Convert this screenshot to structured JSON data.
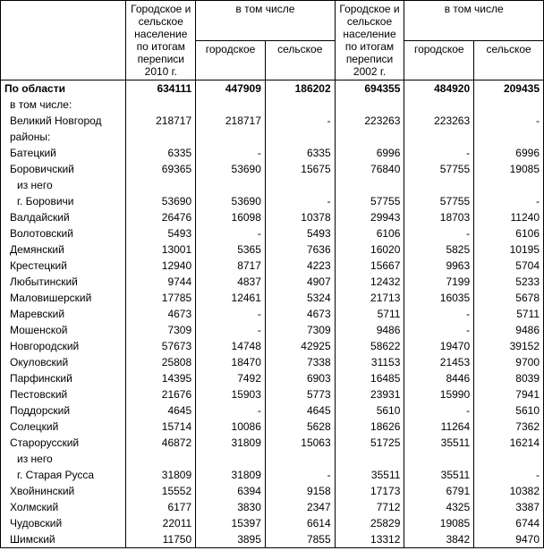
{
  "headers": {
    "col_2010_total": "Городское и сельское население по итогам переписи 2010 г.",
    "group_2010": "в том числе",
    "col_2010_urban": "городское",
    "col_2010_rural": "сельское",
    "col_2002_total": "Городское и сельское население по итогам переписи 2002 г.",
    "group_2002": "в том числе",
    "col_2002_urban": "городское",
    "col_2002_rural": "сельское"
  },
  "rows": [
    {
      "label": "По области",
      "v": [
        "634111",
        "447909",
        "186202",
        "694355",
        "484920",
        "209435"
      ],
      "bold": true,
      "indent": 0
    },
    {
      "label": "в том числе:",
      "v": [
        "",
        "",
        "",
        "",
        "",
        ""
      ],
      "bold": false,
      "indent": 1
    },
    {
      "label": "Великий Новгород",
      "v": [
        "218717",
        "218717",
        "-",
        "223263",
        "223263",
        "-"
      ],
      "bold": false,
      "indent": 1
    },
    {
      "label": "районы:",
      "v": [
        "",
        "",
        "",
        "",
        "",
        ""
      ],
      "bold": false,
      "indent": 1
    },
    {
      "label": "Батецкий",
      "v": [
        "6335",
        "-",
        "6335",
        "6996",
        "-",
        "6996"
      ],
      "bold": false,
      "indent": 1
    },
    {
      "label": "Боровичский",
      "v": [
        "69365",
        "53690",
        "15675",
        "76840",
        "57755",
        "19085"
      ],
      "bold": false,
      "indent": 1
    },
    {
      "label": "из него",
      "v": [
        "",
        "",
        "",
        "",
        "",
        ""
      ],
      "bold": false,
      "indent": 2
    },
    {
      "label": "г. Боровичи",
      "v": [
        "53690",
        "53690",
        "-",
        "57755",
        "57755",
        "-"
      ],
      "bold": false,
      "indent": 2
    },
    {
      "label": "Валдайский",
      "v": [
        "26476",
        "16098",
        "10378",
        "29943",
        "18703",
        "11240"
      ],
      "bold": false,
      "indent": 1
    },
    {
      "label": "Волотовский",
      "v": [
        "5493",
        "-",
        "5493",
        "6106",
        "-",
        "6106"
      ],
      "bold": false,
      "indent": 1
    },
    {
      "label": "Демянский",
      "v": [
        "13001",
        "5365",
        "7636",
        "16020",
        "5825",
        "10195"
      ],
      "bold": false,
      "indent": 1
    },
    {
      "label": "Крестецкий",
      "v": [
        "12940",
        "8717",
        "4223",
        "15667",
        "9963",
        "5704"
      ],
      "bold": false,
      "indent": 1
    },
    {
      "label": "Любытинский",
      "v": [
        "9744",
        "4837",
        "4907",
        "12432",
        "7199",
        "5233"
      ],
      "bold": false,
      "indent": 1
    },
    {
      "label": "Маловишерский",
      "v": [
        "17785",
        "12461",
        "5324",
        "21713",
        "16035",
        "5678"
      ],
      "bold": false,
      "indent": 1
    },
    {
      "label": "Маревский",
      "v": [
        "4673",
        "-",
        "4673",
        "5711",
        "-",
        "5711"
      ],
      "bold": false,
      "indent": 1
    },
    {
      "label": "Мошенской",
      "v": [
        "7309",
        "-",
        "7309",
        "9486",
        "-",
        "9486"
      ],
      "bold": false,
      "indent": 1
    },
    {
      "label": "Новгородский",
      "v": [
        "57673",
        "14748",
        "42925",
        "58622",
        "19470",
        "39152"
      ],
      "bold": false,
      "indent": 1
    },
    {
      "label": "Окуловский",
      "v": [
        "25808",
        "18470",
        "7338",
        "31153",
        "21453",
        "9700"
      ],
      "bold": false,
      "indent": 1
    },
    {
      "label": "Парфинский",
      "v": [
        "14395",
        "7492",
        "6903",
        "16485",
        "8446",
        "8039"
      ],
      "bold": false,
      "indent": 1
    },
    {
      "label": "Пестовский",
      "v": [
        "21676",
        "15903",
        "5773",
        "23931",
        "15990",
        "7941"
      ],
      "bold": false,
      "indent": 1
    },
    {
      "label": "Поддорский",
      "v": [
        "4645",
        "-",
        "4645",
        "5610",
        "-",
        "5610"
      ],
      "bold": false,
      "indent": 1
    },
    {
      "label": "Солецкий",
      "v": [
        "15714",
        "10086",
        "5628",
        "18626",
        "11264",
        "7362"
      ],
      "bold": false,
      "indent": 1
    },
    {
      "label": "Старорусский",
      "v": [
        "46872",
        "31809",
        "15063",
        "51725",
        "35511",
        "16214"
      ],
      "bold": false,
      "indent": 1
    },
    {
      "label": "из него",
      "v": [
        "",
        "",
        "",
        "",
        "",
        ""
      ],
      "bold": false,
      "indent": 2
    },
    {
      "label": "г. Старая Русса",
      "v": [
        "31809",
        "31809",
        "-",
        "35511",
        "35511",
        "-"
      ],
      "bold": false,
      "indent": 2
    },
    {
      "label": "Хвойнинский",
      "v": [
        "15552",
        "6394",
        "9158",
        "17173",
        "6791",
        "10382"
      ],
      "bold": false,
      "indent": 1
    },
    {
      "label": "Холмский",
      "v": [
        "6177",
        "3830",
        "2347",
        "7712",
        "4325",
        "3387"
      ],
      "bold": false,
      "indent": 1
    },
    {
      "label": "Чудовский",
      "v": [
        "22011",
        "15397",
        "6614",
        "25829",
        "19085",
        "6744"
      ],
      "bold": false,
      "indent": 1
    },
    {
      "label": "Шимский",
      "v": [
        "11750",
        "3895",
        "7855",
        "13312",
        "3842",
        "9470"
      ],
      "bold": false,
      "indent": 1
    }
  ]
}
